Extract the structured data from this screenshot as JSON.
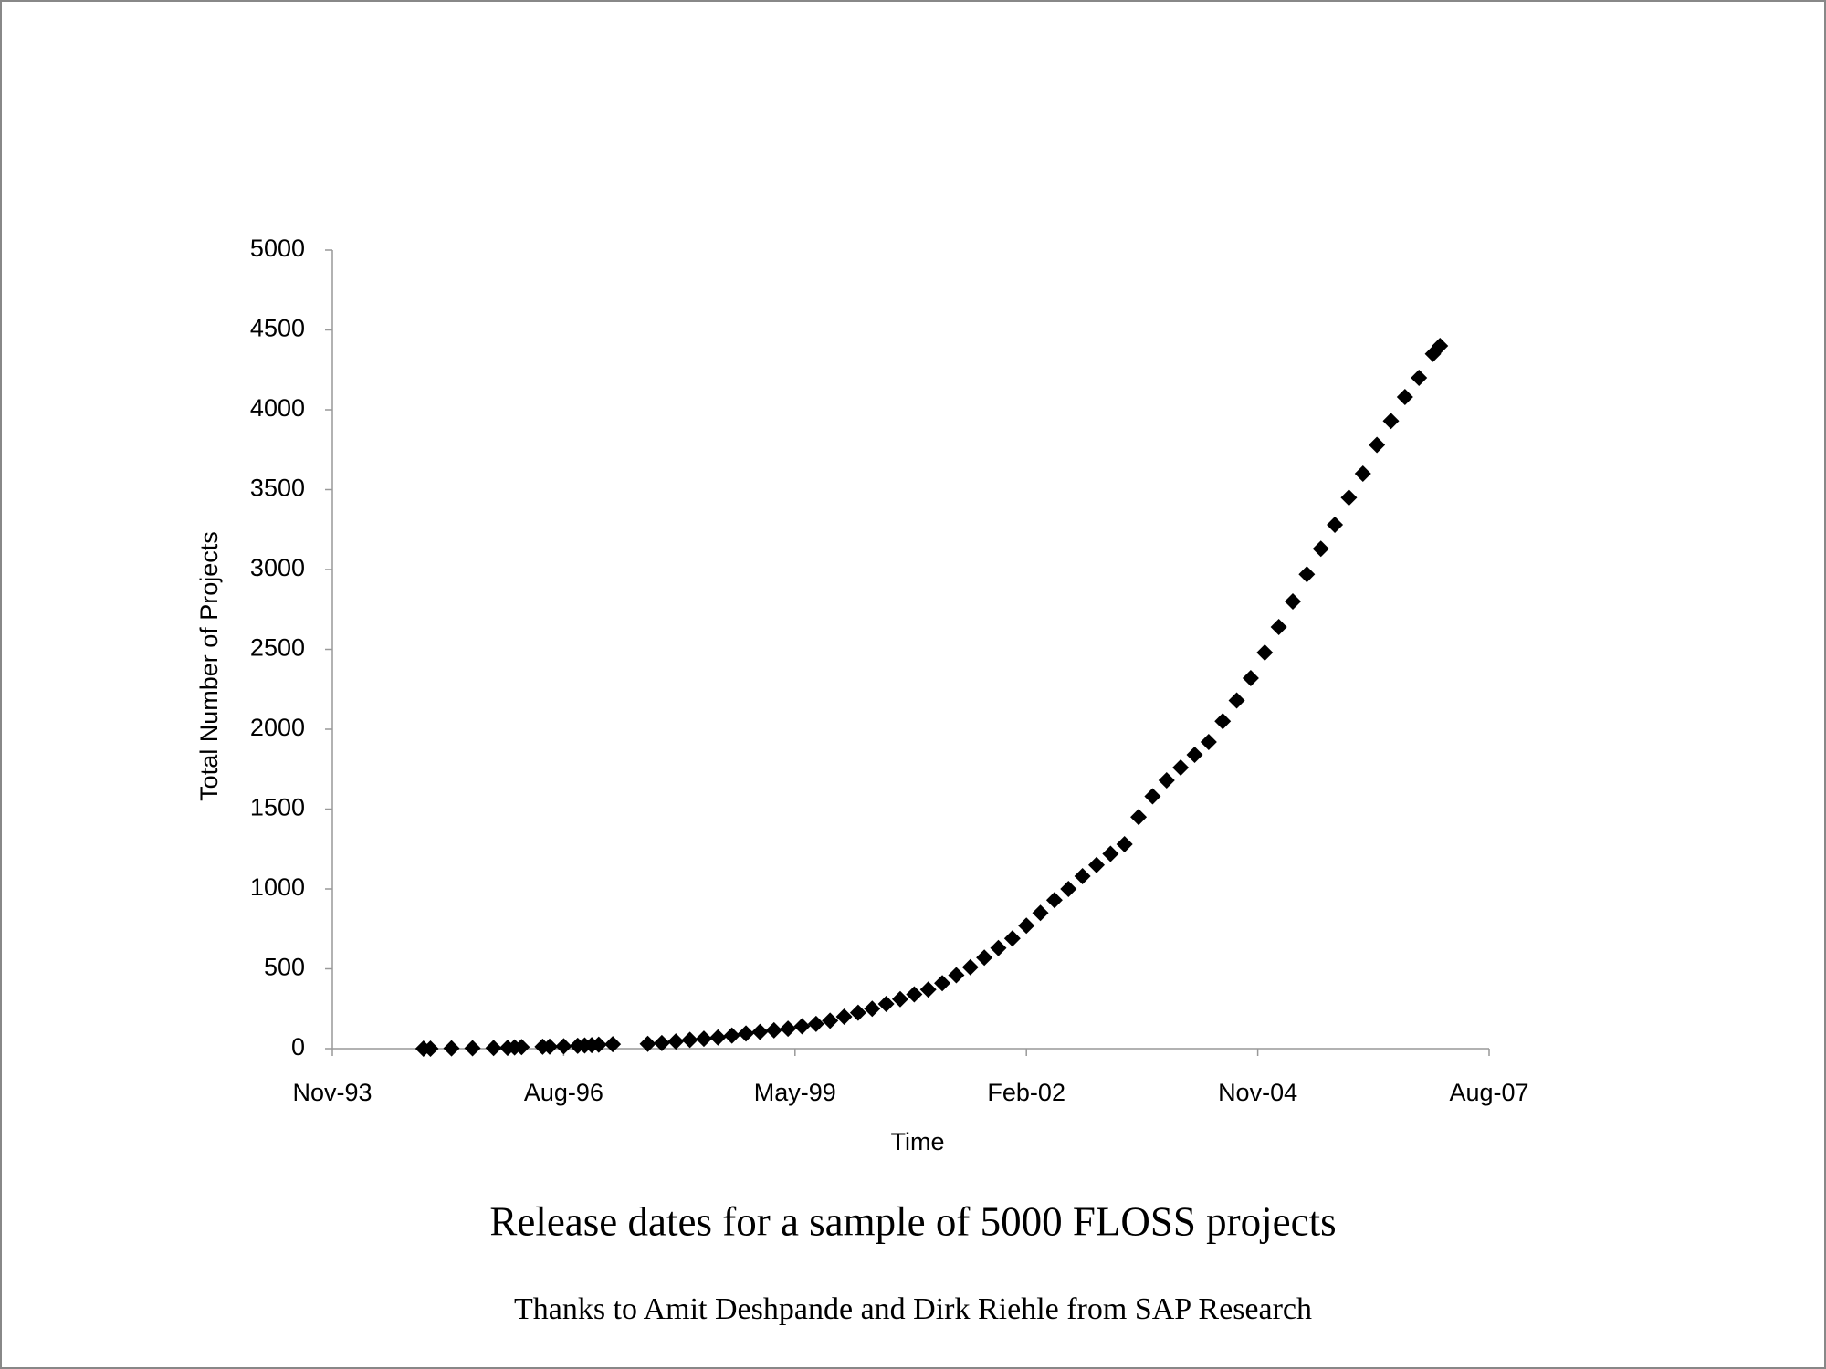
{
  "chart_data": {
    "type": "scatter",
    "title": "Release dates for a sample of 5000 FLOSS projects",
    "subtitle": "Thanks to Amit Deshpande and Dirk Riehle from SAP Research",
    "x_label": "Time",
    "y_label": "Total Number of Projects",
    "color": "#000000",
    "marker": "diamond",
    "x": [
      "1994-12",
      "1995-01",
      "1995-04",
      "1995-07",
      "1995-10",
      "1995-12",
      "1996-01",
      "1996-02",
      "1996-05",
      "1996-06",
      "1996-08",
      "1996-10",
      "1996-11",
      "1996-12",
      "1997-01",
      "1997-03",
      "1997-08",
      "1997-10",
      "1997-12",
      "1998-02",
      "1998-04",
      "1998-06",
      "1998-08",
      "1998-10",
      "1998-12",
      "1999-02",
      "1999-04",
      "1999-06",
      "1999-08",
      "1999-10",
      "1999-12",
      "2000-02",
      "2000-04",
      "2000-06",
      "2000-08",
      "2000-10",
      "2000-12",
      "2001-02",
      "2001-04",
      "2001-06",
      "2001-08",
      "2001-10",
      "2001-12",
      "2002-02",
      "2002-04",
      "2002-06",
      "2002-08",
      "2002-10",
      "2002-12",
      "2003-02",
      "2003-04",
      "2003-06",
      "2003-08",
      "2003-10",
      "2003-12",
      "2004-02",
      "2004-04",
      "2004-06",
      "2004-08",
      "2004-10",
      "2004-12",
      "2005-02",
      "2005-04",
      "2005-06",
      "2005-08",
      "2005-10",
      "2005-12",
      "2006-02",
      "2006-04",
      "2006-06",
      "2006-08",
      "2006-10",
      "2006-12",
      "2007-01"
    ],
    "values": [
      0,
      0,
      2,
      3,
      4,
      5,
      8,
      10,
      12,
      13,
      15,
      18,
      20,
      22,
      25,
      28,
      30,
      35,
      45,
      55,
      62,
      70,
      82,
      95,
      105,
      115,
      125,
      140,
      155,
      175,
      200,
      225,
      250,
      280,
      310,
      340,
      370,
      410,
      460,
      510,
      570,
      630,
      690,
      770,
      850,
      930,
      1000,
      1080,
      1150,
      1220,
      1280,
      1450,
      1580,
      1680,
      1760,
      1840,
      1920,
      2050,
      2180,
      2320,
      2480,
      2640,
      2800,
      2970,
      3130,
      3280,
      3450,
      3600,
      3780,
      3930,
      4080,
      4200,
      4350,
      4400
    ],
    "xlim": [
      "1993-11",
      "2007-08"
    ],
    "xticks": [
      {
        "value": "1993-11",
        "label": "Nov-93"
      },
      {
        "value": "1996-08",
        "label": "Aug-96"
      },
      {
        "value": "1999-05",
        "label": "May-99"
      },
      {
        "value": "2002-02",
        "label": "Feb-02"
      },
      {
        "value": "2004-11",
        "label": "Nov-04"
      },
      {
        "value": "2007-08",
        "label": "Aug-07"
      }
    ],
    "ylim": [
      0,
      5000
    ],
    "yticks": [
      0,
      500,
      1000,
      1500,
      2000,
      2500,
      3000,
      3500,
      4000,
      4500,
      5000
    ],
    "grid": false
  }
}
